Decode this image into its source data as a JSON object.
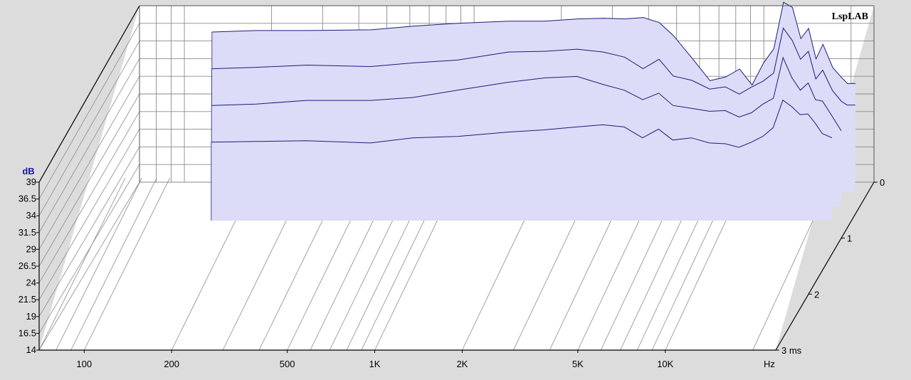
{
  "chart_data": {
    "type": "waterfall",
    "brand": "LspLAB",
    "ylabel": "dB",
    "y_ticks": [
      "39",
      "36.5",
      "34",
      "31.5",
      "29",
      "26.5",
      "24",
      "21.5",
      "19",
      "16.5",
      "14"
    ],
    "ylim": [
      14,
      39
    ],
    "x_scale": "log",
    "xlim": [
      70,
      24000
    ],
    "x_ticks": [
      {
        "label": "100",
        "value": 100
      },
      {
        "label": "200",
        "value": 200
      },
      {
        "label": "500",
        "value": 500
      },
      {
        "label": "1K",
        "value": 1000
      },
      {
        "label": "2K",
        "value": 2000
      },
      {
        "label": "5K",
        "value": 5000
      },
      {
        "label": "10K",
        "value": 10000
      }
    ],
    "x_unit": "Hz",
    "z_ticks": [
      {
        "label": "0",
        "value": 0
      },
      {
        "label": "1",
        "value": 1
      },
      {
        "label": "2",
        "value": 2
      },
      {
        "label": "3 ms",
        "value": 3
      }
    ],
    "zlim": [
      0,
      3
    ],
    "fill_color": "#dcdcf8",
    "line_color": "#1c1c7a",
    "slices": [
      {
        "t": 0.0,
        "pts": [
          [
            140,
            34.1
          ],
          [
            200,
            34.3
          ],
          [
            300,
            34.3
          ],
          [
            500,
            34.4
          ],
          [
            700,
            34.9
          ],
          [
            1000,
            35.3
          ],
          [
            1500,
            35.6
          ],
          [
            2000,
            35.6
          ],
          [
            2600,
            35.9
          ],
          [
            3200,
            36.0
          ],
          [
            3800,
            35.9
          ],
          [
            4400,
            36.1
          ],
          [
            5000,
            35.4
          ],
          [
            5600,
            33.6
          ],
          [
            6500,
            30.5
          ],
          [
            7500,
            27.4
          ],
          [
            8500,
            27.9
          ],
          [
            9500,
            29.0
          ],
          [
            10500,
            26.8
          ],
          [
            11500,
            29.8
          ],
          [
            12500,
            31.8
          ],
          [
            13500,
            38.2
          ],
          [
            14500,
            37.5
          ],
          [
            15500,
            33.2
          ],
          [
            16500,
            34.6
          ],
          [
            17500,
            30.4
          ],
          [
            18500,
            32.4
          ],
          [
            20000,
            29.2
          ],
          [
            21500,
            27.8
          ],
          [
            22500,
            27.0
          ],
          [
            24000,
            27.0
          ]
        ]
      },
      {
        "t": 0.25,
        "pts": [
          [
            140,
            31.0
          ],
          [
            200,
            31.2
          ],
          [
            300,
            31.5
          ],
          [
            500,
            31.3
          ],
          [
            700,
            31.8
          ],
          [
            1000,
            32.2
          ],
          [
            1500,
            33.3
          ],
          [
            2000,
            33.4
          ],
          [
            2600,
            33.7
          ],
          [
            3200,
            33.3
          ],
          [
            3800,
            32.6
          ],
          [
            4400,
            31.0
          ],
          [
            5000,
            32.3
          ],
          [
            5600,
            30.0
          ],
          [
            6500,
            29.4
          ],
          [
            7500,
            28.2
          ],
          [
            8500,
            28.5
          ],
          [
            9500,
            27.5
          ],
          [
            10500,
            28.5
          ],
          [
            11500,
            29.3
          ],
          [
            12500,
            30.4
          ],
          [
            13500,
            36.6
          ],
          [
            14500,
            34.9
          ],
          [
            15500,
            32.3
          ],
          [
            16500,
            33.4
          ],
          [
            17500,
            29.6
          ],
          [
            18500,
            30.8
          ],
          [
            20000,
            28.0
          ],
          [
            21500,
            26.5
          ],
          [
            22500,
            26.0
          ],
          [
            24000,
            26.0
          ]
        ]
      },
      {
        "t": 0.5,
        "pts": [
          [
            140,
            27.9
          ],
          [
            200,
            28.1
          ],
          [
            300,
            28.6
          ],
          [
            500,
            28.6
          ],
          [
            700,
            29.0
          ],
          [
            1000,
            30.0
          ],
          [
            1500,
            31.1
          ],
          [
            2000,
            31.7
          ],
          [
            2600,
            31.9
          ],
          [
            3200,
            30.8
          ],
          [
            3800,
            30.0
          ],
          [
            4400,
            28.7
          ],
          [
            5000,
            29.6
          ],
          [
            5600,
            27.9
          ],
          [
            6500,
            27.5
          ],
          [
            7500,
            27.1
          ],
          [
            8500,
            27.2
          ],
          [
            9500,
            26.3
          ],
          [
            10500,
            26.9
          ],
          [
            11500,
            28.1
          ],
          [
            12500,
            28.9
          ],
          [
            13500,
            34.5
          ],
          [
            14500,
            31.7
          ],
          [
            15500,
            30.0
          ],
          [
            16500,
            31.0
          ],
          [
            17500,
            28.7
          ],
          [
            18500,
            28.5
          ],
          [
            20000,
            26.4
          ],
          [
            21500,
            24.4
          ]
        ]
      },
      {
        "t": 0.75,
        "pts": [
          [
            140,
            24.8
          ],
          [
            200,
            24.9
          ],
          [
            300,
            25.0
          ],
          [
            500,
            24.7
          ],
          [
            700,
            25.4
          ],
          [
            1000,
            25.6
          ],
          [
            1500,
            26.2
          ],
          [
            2000,
            26.5
          ],
          [
            2600,
            26.9
          ],
          [
            3200,
            27.2
          ],
          [
            3800,
            26.9
          ],
          [
            4400,
            25.4
          ],
          [
            5000,
            26.6
          ],
          [
            5600,
            25.1
          ],
          [
            6500,
            25.4
          ],
          [
            7500,
            24.7
          ],
          [
            8500,
            24.6
          ],
          [
            9500,
            24.1
          ],
          [
            10500,
            24.8
          ],
          [
            11500,
            25.6
          ],
          [
            12500,
            26.8
          ],
          [
            13500,
            30.6
          ],
          [
            14500,
            29.7
          ],
          [
            15500,
            28.6
          ],
          [
            16500,
            28.7
          ],
          [
            17500,
            27.4
          ],
          [
            18500,
            26.0
          ],
          [
            20000,
            25.4
          ]
        ]
      }
    ]
  }
}
